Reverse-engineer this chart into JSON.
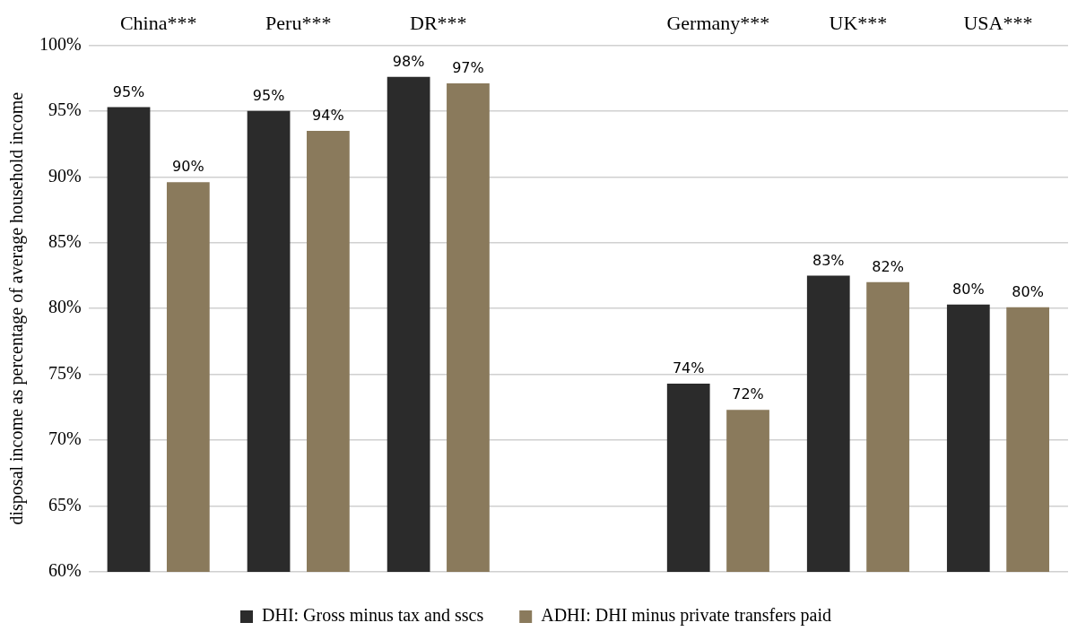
{
  "chart_data": {
    "type": "bar",
    "ylabel": "disposal income as percentage of average household income",
    "categories": [
      "China***",
      "Peru***",
      "DR***",
      null,
      "Germany***",
      "UK***",
      "USA***"
    ],
    "series": [
      {
        "name": "DHI: Gross minus tax and sscs",
        "color": "#2b2b2b",
        "values": [
          95.3,
          95.0,
          97.6,
          null,
          74.3,
          82.5,
          80.3
        ],
        "value_labels": [
          "95%",
          "95%",
          "98%",
          null,
          "74%",
          "83%",
          "80%"
        ]
      },
      {
        "name": "ADHI: DHI minus private transfers paid",
        "color": "#8a7a5c",
        "values": [
          89.6,
          93.5,
          97.1,
          null,
          72.3,
          82.0,
          80.1
        ],
        "value_labels": [
          "90%",
          "94%",
          "97%",
          null,
          "72%",
          "82%",
          "80%"
        ]
      }
    ],
    "ylim": [
      60,
      100
    ],
    "yticks": [
      {
        "value": 60,
        "label": "60%"
      },
      {
        "value": 65,
        "label": "65%"
      },
      {
        "value": 70,
        "label": "70%"
      },
      {
        "value": 75,
        "label": "75%"
      },
      {
        "value": 80,
        "label": "80%"
      },
      {
        "value": 85,
        "label": "85%"
      },
      {
        "value": 90,
        "label": "90%"
      },
      {
        "value": 95,
        "label": "95%"
      },
      {
        "value": 100,
        "label": "100%"
      }
    ],
    "grid": "y",
    "legend": "bottom"
  }
}
